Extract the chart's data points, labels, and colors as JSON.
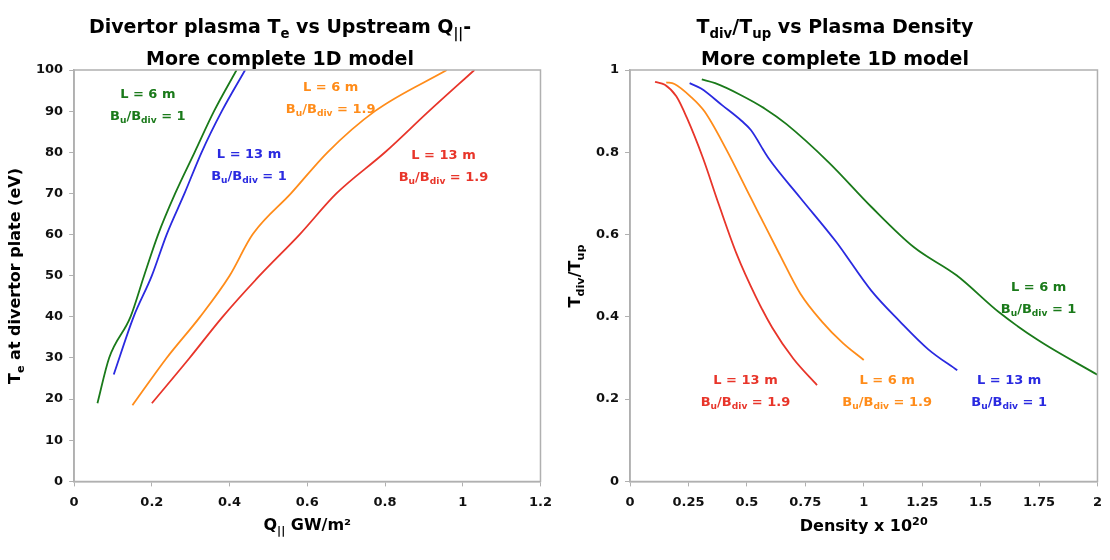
{
  "chart_data": [
    {
      "type": "line",
      "title": "Divertor plasma T$_{e}$ vs Upstream Q$_{||}$-\nMore complete 1D model",
      "xlabel": "Q$_{||}$ GW/m²",
      "ylabel": "T$_{e}$ at divertor plate (eV)",
      "xlim": [
        0,
        1.2
      ],
      "xticks": [
        0,
        0.2,
        0.4,
        0.6,
        0.8,
        1,
        1.2
      ],
      "ylim": [
        0,
        100
      ],
      "yticks": [
        0,
        10,
        20,
        30,
        40,
        50,
        60,
        70,
        80,
        90,
        100
      ],
      "grid": false,
      "legend": false,
      "marker": "none",
      "line_style": "solid",
      "series": [
        {
          "name": "L = 6 m\nB$_{u}$/B$_{div}$ = 1",
          "color": "#1a7a1a",
          "x": [
            0.06,
            0.09,
            0.145,
            0.18,
            0.216,
            0.26,
            0.31,
            0.36,
            0.418
          ],
          "values": [
            19,
            30,
            40,
            50,
            60,
            70,
            80,
            90,
            100
          ]
        },
        {
          "name": "L = 13 m\nB$_{u}$/B$_{div}$ = 1",
          "color": "#2a2ae0",
          "x": [
            0.102,
            0.153,
            0.2,
            0.238,
            0.284,
            0.328,
            0.38,
            0.44
          ],
          "values": [
            26,
            40,
            50,
            60,
            70,
            80,
            90,
            100
          ]
        },
        {
          "name": "L = 6 m\nB$_{u}$/B$_{div}$ = 1.9",
          "color": "#ff8c1a",
          "x": [
            0.15,
            0.238,
            0.324,
            0.4,
            0.459,
            0.558,
            0.652,
            0.774,
            0.959
          ],
          "values": [
            18.5,
            30,
            40,
            50,
            60,
            70,
            80,
            90,
            100
          ]
        },
        {
          "name": "L = 13 m\nB$_{u}$/B$_{div}$ = 1.9",
          "color": "#e8352a",
          "x": [
            0.2,
            0.297,
            0.382,
            0.477,
            0.58,
            0.675,
            0.8,
            0.913,
            1.03
          ],
          "values": [
            19,
            30,
            40,
            50,
            60,
            70,
            80,
            90,
            100
          ]
        }
      ]
    },
    {
      "type": "line",
      "title": "T$_{div}$/T$_{up}$ vs Plasma Density\nMore complete 1D model",
      "xlabel": "Density x 10$^{20}$",
      "ylabel": "T$_{div}$/T$_{up}$",
      "xlim": [
        0,
        2
      ],
      "xticks": [
        0,
        0.25,
        0.5,
        0.75,
        1,
        1.25,
        1.5,
        1.75,
        2
      ],
      "ylim": [
        0,
        1
      ],
      "yticks": [
        0,
        0.2,
        0.4,
        0.6,
        0.8,
        1
      ],
      "grid": false,
      "legend": false,
      "marker": "none",
      "line_style": "solid",
      "series": [
        {
          "name": "L = 13 m\nB$_{u}$/B$_{div}$ = 1.9",
          "color": "#e8352a",
          "x": [
            0.107,
            0.149,
            0.198,
            0.243,
            0.312,
            0.38,
            0.456,
            0.539,
            0.608,
            0.699,
            0.8
          ],
          "values": [
            0.971,
            0.964,
            0.936,
            0.884,
            0.786,
            0.673,
            0.553,
            0.448,
            0.374,
            0.298,
            0.234
          ]
        },
        {
          "name": "L = 6 m\nB$_{u}$/B$_{div}$ = 1.9",
          "color": "#ff8c1a",
          "x": [
            0.155,
            0.19,
            0.258,
            0.319,
            0.41,
            0.517,
            0.638,
            0.729,
            0.82,
            0.911,
            1.0
          ],
          "values": [
            0.97,
            0.966,
            0.936,
            0.899,
            0.809,
            0.689,
            0.554,
            0.456,
            0.389,
            0.336,
            0.295
          ]
        },
        {
          "name": "L = 13 m\nB$_{u}$/B$_{div}$ = 1",
          "color": "#2a2ae0",
          "x": [
            0.255,
            0.304,
            0.395,
            0.478,
            0.517,
            0.592,
            0.729,
            0.881,
            1.033,
            1.154,
            1.276,
            1.4
          ],
          "values": [
            0.968,
            0.955,
            0.914,
            0.876,
            0.854,
            0.786,
            0.689,
            0.583,
            0.463,
            0.389,
            0.321,
            0.27
          ]
        },
        {
          "name": "L = 6 m\nB$_{u}$/B$_{div}$ = 1",
          "color": "#1a7a1a",
          "x": [
            0.307,
            0.364,
            0.471,
            0.577,
            0.668,
            0.851,
            1.033,
            1.215,
            1.397,
            1.579,
            1.747,
            2.0
          ],
          "values": [
            0.977,
            0.968,
            0.94,
            0.906,
            0.869,
            0.775,
            0.667,
            0.569,
            0.501,
            0.411,
            0.343,
            0.259
          ]
        }
      ]
    }
  ]
}
